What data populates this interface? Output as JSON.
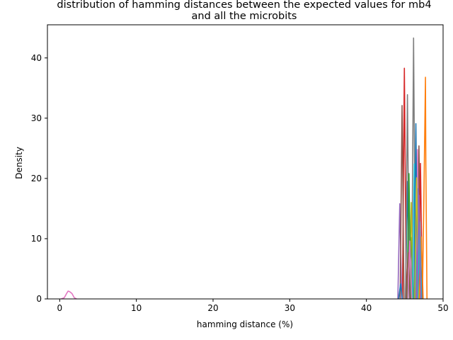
{
  "chart_data": {
    "type": "line",
    "title_line1": "distribution of hamming distances between the expected values for mb4",
    "title_line2": "and all the microbits",
    "xlabel": "hamming distance (%)",
    "ylabel": "Density",
    "xlim": [
      -1.6,
      50
    ],
    "ylim": [
      0,
      45.5
    ],
    "xticks": [
      0,
      10,
      20,
      30,
      40,
      50
    ],
    "yticks": [
      0,
      10,
      20,
      30,
      40
    ],
    "grid": false,
    "series": [
      {
        "color": "#e377c2",
        "x": [
          0.2,
          0.6,
          0.9,
          1.1,
          1.3,
          1.6,
          1.9,
          2.2
        ],
        "y": [
          0,
          0.2,
          0.9,
          1.3,
          1.2,
          0.9,
          0.2,
          0
        ]
      },
      {
        "color": "#1f77b4",
        "x": [
          45.1,
          45.35,
          45.6
        ],
        "y": [
          0,
          19.5,
          0
        ]
      },
      {
        "color": "#ff7f0e",
        "x": [
          47.3,
          47.5,
          47.7,
          47.75,
          47.9
        ],
        "y": [
          0,
          17.2,
          36.8,
          22.5,
          0
        ]
      },
      {
        "color": "#2ca02c",
        "x": [
          45.6,
          45.85,
          46.1
        ],
        "y": [
          0,
          10.2,
          0
        ]
      },
      {
        "color": "#d62728",
        "x": [
          44.7,
          44.95,
          45.2
        ],
        "y": [
          0,
          38.3,
          0
        ]
      },
      {
        "color": "#9467bd",
        "x": [
          44.1,
          44.35,
          44.6
        ],
        "y": [
          0,
          15.8,
          0
        ]
      },
      {
        "color": "#8c564b",
        "x": [
          46.6,
          46.85,
          47.1
        ],
        "y": [
          0,
          25.4,
          0
        ]
      },
      {
        "color": "#e377c2",
        "x": [
          46.4,
          46.65,
          46.9
        ],
        "y": [
          0,
          24.8,
          0
        ]
      },
      {
        "color": "#7f7f7f",
        "x": [
          45.9,
          46.15,
          46.4
        ],
        "y": [
          0,
          43.3,
          0
        ]
      },
      {
        "color": "#bcbd22",
        "x": [
          45.6,
          45.85,
          46.1
        ],
        "y": [
          0,
          16.0,
          0
        ]
      },
      {
        "color": "#17becf",
        "x": [
          46.0,
          46.25,
          46.5
        ],
        "y": [
          0,
          22.4,
          0
        ]
      },
      {
        "color": "#8c564b",
        "x": [
          44.4,
          44.65,
          44.9
        ],
        "y": [
          0,
          32.1,
          0
        ]
      },
      {
        "color": "#7f7f7f",
        "x": [
          45.1,
          45.35,
          45.6
        ],
        "y": [
          0,
          33.9,
          0
        ]
      },
      {
        "color": "#1f77b4",
        "x": [
          46.2,
          46.45,
          46.7
        ],
        "y": [
          0,
          29.1,
          0
        ]
      },
      {
        "color": "#d62728",
        "x": [
          46.8,
          47.05,
          47.3
        ],
        "y": [
          0,
          22.5,
          0
        ]
      },
      {
        "color": "#2ca02c",
        "x": [
          45.3,
          45.55,
          45.8
        ],
        "y": [
          0,
          20.8,
          0
        ]
      },
      {
        "color": "#9467bd",
        "x": [
          46.5,
          46.75,
          47.0
        ],
        "y": [
          0,
          18.3,
          0
        ]
      },
      {
        "color": "#bcbd22",
        "x": [
          46.3,
          46.55,
          46.8
        ],
        "y": [
          0,
          20.1,
          0
        ]
      },
      {
        "color": "#8c564b",
        "x": [
          45.2,
          45.45,
          45.7
        ],
        "y": [
          0,
          7.7,
          0
        ]
      },
      {
        "color": "#e377c2",
        "x": [
          45.4,
          45.65,
          45.9
        ],
        "y": [
          0,
          9.6,
          0
        ]
      },
      {
        "color": "#ff7f0e",
        "x": [
          46.9,
          47.15,
          47.4
        ],
        "y": [
          0,
          10.3,
          0
        ]
      },
      {
        "color": "#17becf",
        "x": [
          46.7,
          46.95,
          47.2
        ],
        "y": [
          0,
          12.8,
          0
        ]
      },
      {
        "color": "#1f77b4",
        "x": [
          44.2,
          44.45,
          44.7
        ],
        "y": [
          0,
          2.5,
          0
        ]
      },
      {
        "color": "#9467bd",
        "x": [
          46.6,
          46.85,
          47.1
        ],
        "y": [
          0,
          17.2,
          0
        ]
      }
    ]
  }
}
